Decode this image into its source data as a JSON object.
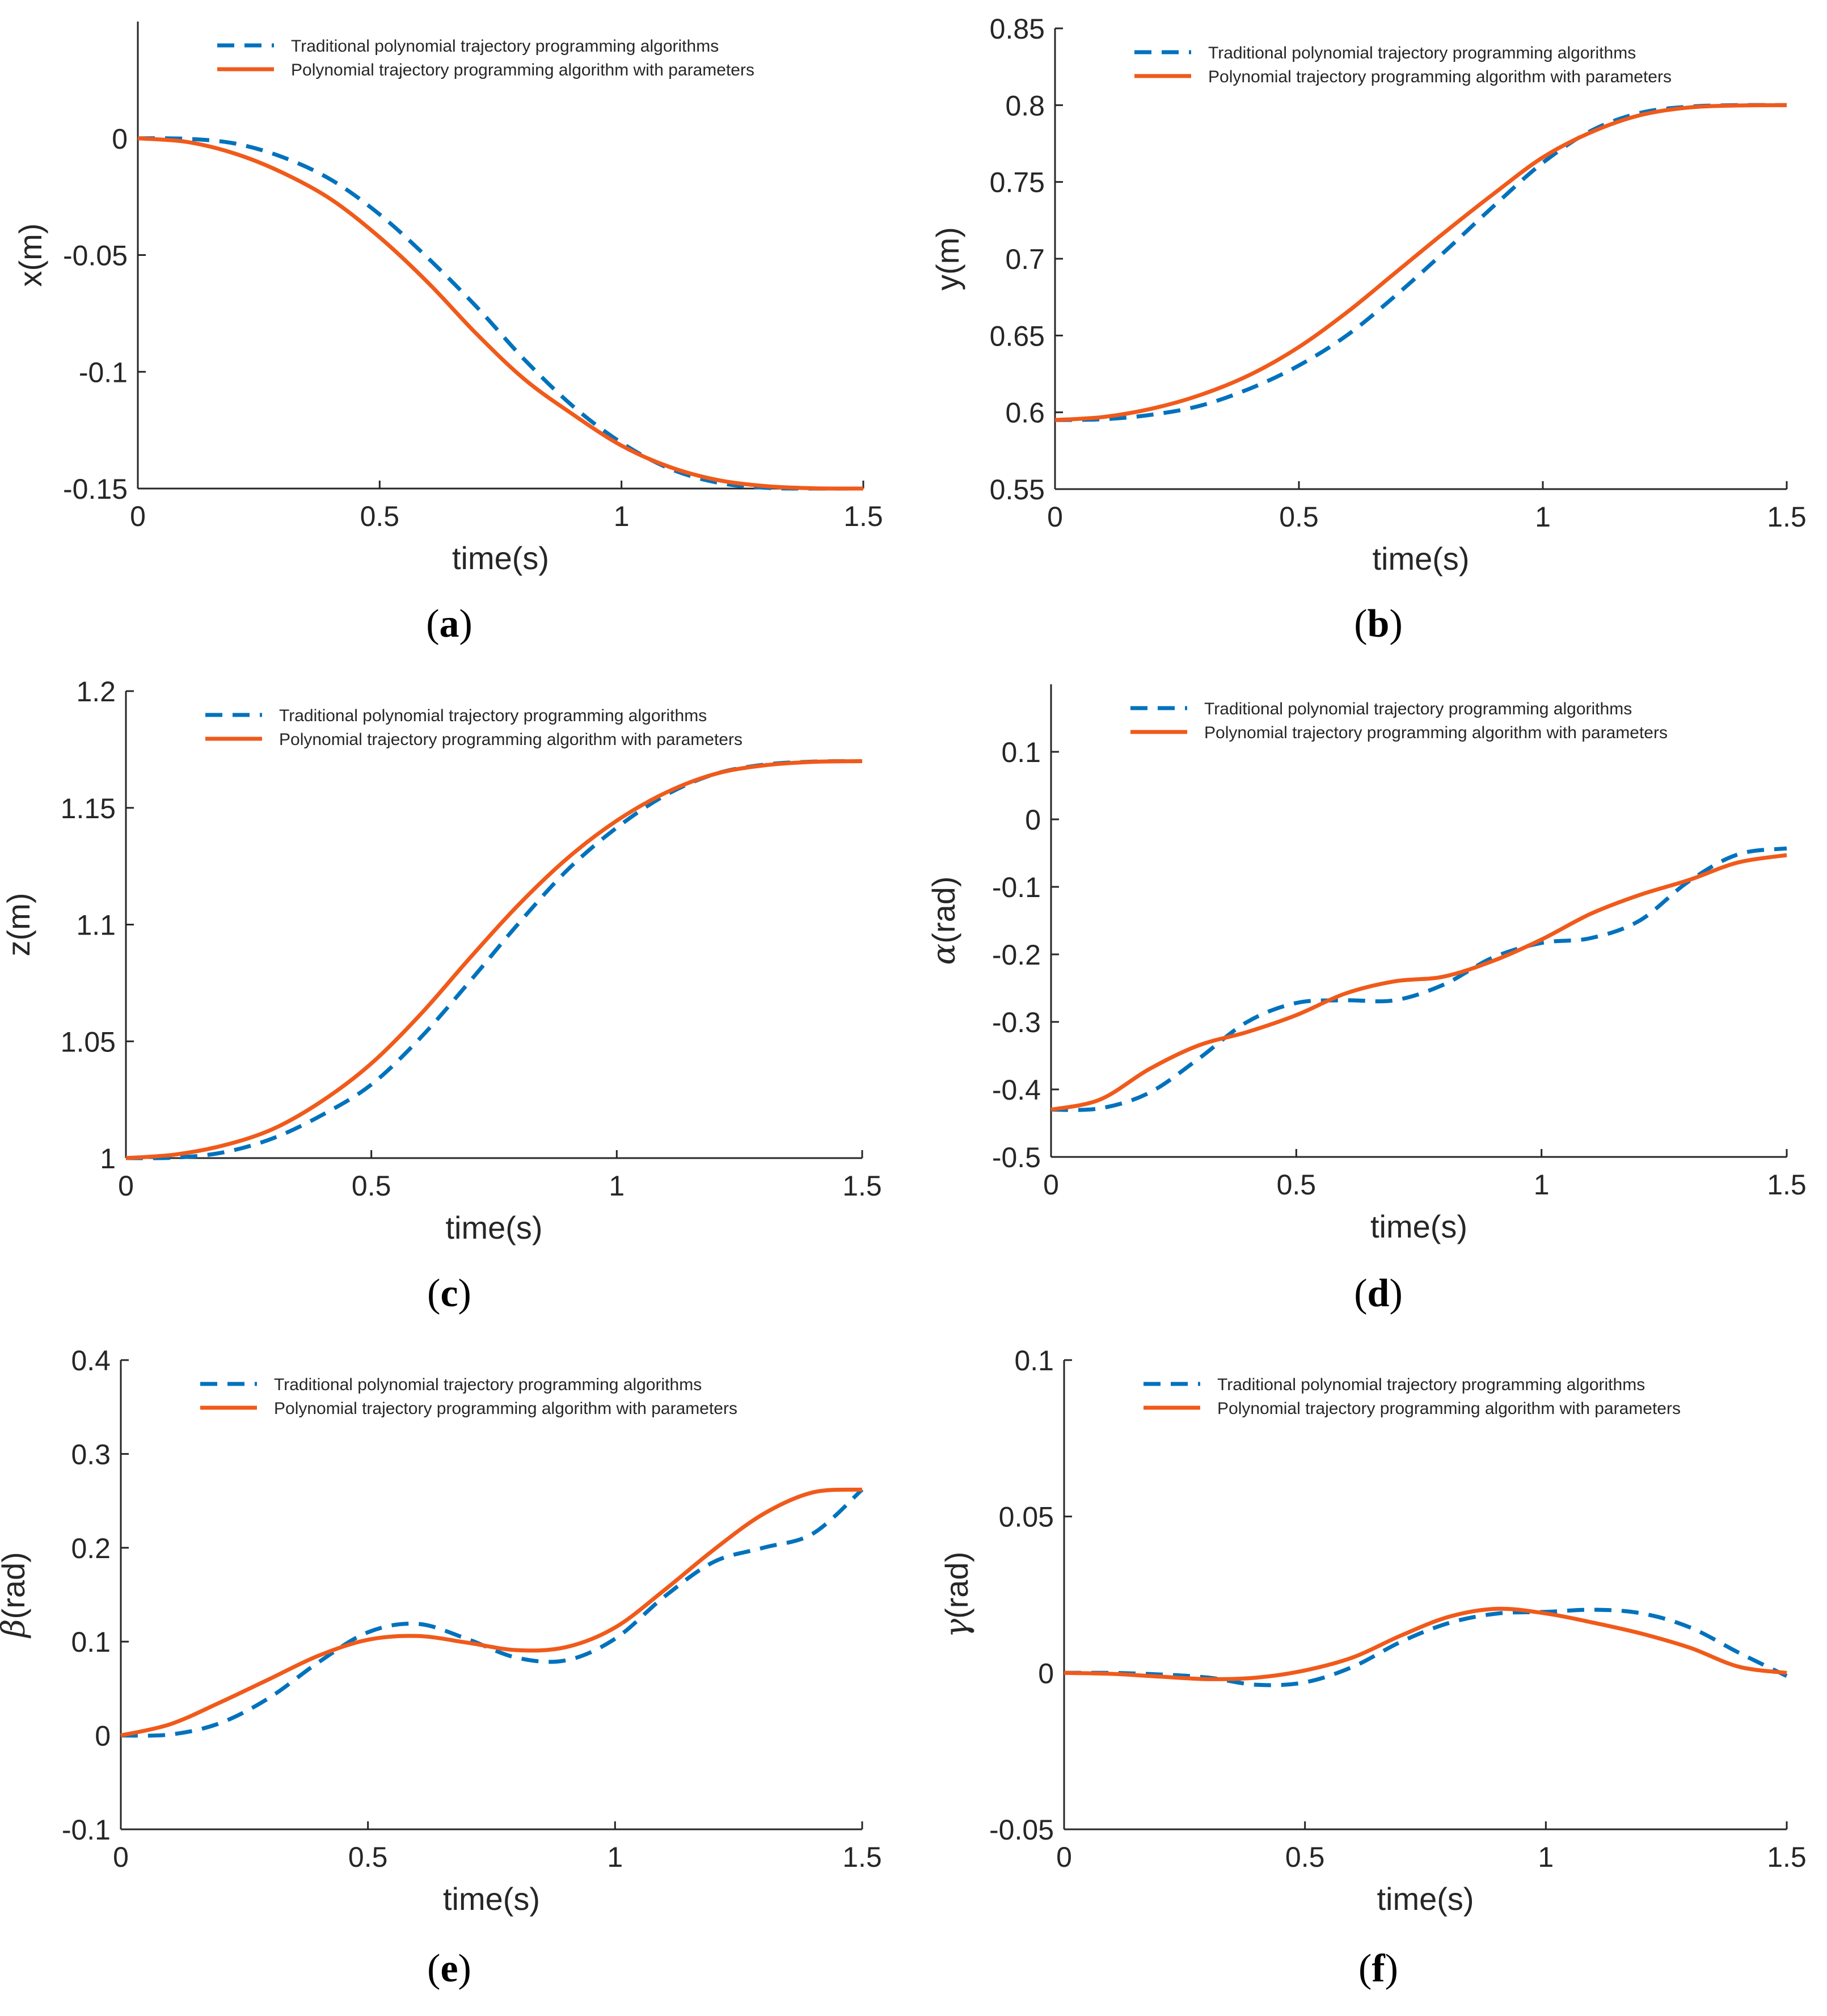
{
  "legend": {
    "traditional": "Traditional polynomial trajectory programming algorithms",
    "parametric": "Polynomial trajectory programming algorithm with parameters"
  },
  "colors": {
    "traditional": "#0072BD",
    "parametric": "#F05A1A",
    "axis": "#262626"
  },
  "chart_data": [
    {
      "id": "a",
      "type": "line",
      "caption": "a",
      "xlabel": "time(s)",
      "ylabel": "x(m)",
      "xlim": [
        0,
        1.5
      ],
      "ylim": [
        -0.15,
        0.05
      ],
      "xticks": [
        0,
        0.5,
        1,
        1.5
      ],
      "xtick_labels": [
        "0",
        "0.5",
        "1",
        "1.5"
      ],
      "yticks": [
        -0.15,
        -0.1,
        -0.05,
        0
      ],
      "ytick_labels": [
        "-0.15",
        "-0.1",
        "-0.05",
        "0"
      ],
      "x": [
        0,
        0.1,
        0.2,
        0.3,
        0.4,
        0.5,
        0.6,
        0.7,
        0.8,
        0.9,
        1.0,
        1.1,
        1.2,
        1.3,
        1.4,
        1.5
      ],
      "series": [
        {
          "name": "Traditional polynomial trajectory programming algorithms",
          "style": "dashed",
          "values": [
            0,
            -0.0002,
            -0.0022,
            -0.0081,
            -0.0178,
            -0.0326,
            -0.0513,
            -0.0721,
            -0.0949,
            -0.1148,
            -0.1304,
            -0.1415,
            -0.1475,
            -0.1497,
            -0.15,
            -0.15
          ]
        },
        {
          "name": "Polynomial trajectory programming algorithm with parameters",
          "style": "solid",
          "values": [
            0,
            -0.0015,
            -0.0065,
            -0.0148,
            -0.0262,
            -0.0424,
            -0.0618,
            -0.0837,
            -0.1033,
            -0.1183,
            -0.1316,
            -0.1408,
            -0.1464,
            -0.149,
            -0.1499,
            -0.15
          ]
        }
      ]
    },
    {
      "id": "b",
      "type": "line",
      "caption": "b",
      "xlabel": "time(s)",
      "ylabel": "y(m)",
      "xlim": [
        0,
        1.5
      ],
      "ylim": [
        0.55,
        0.85
      ],
      "xticks": [
        0,
        0.5,
        1,
        1.5
      ],
      "xtick_labels": [
        "0",
        "0.5",
        "1",
        "1.5"
      ],
      "yticks": [
        0.55,
        0.6,
        0.65,
        0.7,
        0.75,
        0.8,
        0.85
      ],
      "ytick_labels": [
        "0.55",
        "0.6",
        "0.65",
        "0.7",
        "0.75",
        "0.8",
        "0.85"
      ],
      "x": [
        0,
        0.1,
        0.2,
        0.3,
        0.4,
        0.5,
        0.6,
        0.7,
        0.8,
        0.9,
        1.0,
        1.1,
        1.2,
        1.3,
        1.4,
        1.5
      ],
      "series": [
        {
          "name": "Traditional polynomial trajectory programming algorithms",
          "style": "dashed",
          "values": [
            0.595,
            0.5955,
            0.5985,
            0.6045,
            0.6155,
            0.6305,
            0.6505,
            0.6765,
            0.705,
            0.7345,
            0.7625,
            0.7835,
            0.795,
            0.799,
            0.8,
            0.8
          ]
        },
        {
          "name": "Polynomial trajectory programming algorithm with parameters",
          "style": "solid",
          "values": [
            0.595,
            0.597,
            0.6025,
            0.6115,
            0.6245,
            0.6425,
            0.6655,
            0.6915,
            0.7175,
            0.7425,
            0.766,
            0.7825,
            0.7935,
            0.7985,
            0.7998,
            0.8
          ]
        }
      ]
    },
    {
      "id": "c",
      "type": "line",
      "caption": "c",
      "xlabel": "time(s)",
      "ylabel": "z(m)",
      "xlim": [
        0,
        1.5
      ],
      "ylim": [
        1.0,
        1.2
      ],
      "xticks": [
        0,
        0.5,
        1,
        1.5
      ],
      "xtick_labels": [
        "0",
        "0.5",
        "1",
        "1.5"
      ],
      "yticks": [
        1.0,
        1.05,
        1.1,
        1.15,
        1.2
      ],
      "ytick_labels": [
        "1",
        "1.05",
        "1.1",
        "1.15",
        "1.2"
      ],
      "x": [
        0,
        0.1,
        0.2,
        0.3,
        0.4,
        0.5,
        0.6,
        0.7,
        0.8,
        0.9,
        1.0,
        1.1,
        1.2,
        1.3,
        1.4,
        1.5
      ],
      "series": [
        {
          "name": "Traditional polynomial trajectory programming algorithms",
          "style": "dashed",
          "values": [
            1.0,
            1.0002,
            1.0025,
            1.0085,
            1.0185,
            1.0315,
            1.0515,
            1.0755,
            1.1005,
            1.1235,
            1.1415,
            1.1555,
            1.1645,
            1.1685,
            1.1698,
            1.17
          ]
        },
        {
          "name": "Polynomial trajectory programming algorithm with parameters",
          "style": "solid",
          "values": [
            1.0,
            1.0015,
            1.0055,
            1.0125,
            1.0245,
            1.0405,
            1.0615,
            1.0855,
            1.1085,
            1.1285,
            1.1445,
            1.1565,
            1.1645,
            1.1682,
            1.1697,
            1.17
          ]
        }
      ]
    },
    {
      "id": "d",
      "type": "line",
      "caption": "d",
      "xlabel": "time(s)",
      "ylabel": "α(rad)",
      "ylabel_symbol": "α",
      "ylabel_unit": "(rad)",
      "xlim": [
        0,
        1.5
      ],
      "ylim": [
        -0.5,
        0.2
      ],
      "xticks": [
        0,
        0.5,
        1,
        1.5
      ],
      "xtick_labels": [
        "0",
        "0.5",
        "1",
        "1.5"
      ],
      "yticks": [
        -0.5,
        -0.4,
        -0.3,
        -0.2,
        -0.1,
        0,
        0.1
      ],
      "ytick_labels": [
        "-0.5",
        "-0.4",
        "-0.3",
        "-0.2",
        "-0.1",
        "0",
        "0.1"
      ],
      "x": [
        0,
        0.1,
        0.2,
        0.3,
        0.4,
        0.5,
        0.6,
        0.7,
        0.8,
        0.9,
        1.0,
        1.1,
        1.2,
        1.3,
        1.4,
        1.5
      ],
      "series": [
        {
          "name": "Traditional polynomial trajectory programming algorithms",
          "style": "dashed",
          "values": [
            -0.43,
            -0.428,
            -0.405,
            -0.355,
            -0.3,
            -0.272,
            -0.268,
            -0.268,
            -0.245,
            -0.205,
            -0.183,
            -0.176,
            -0.15,
            -0.092,
            -0.052,
            -0.043
          ]
        },
        {
          "name": "Polynomial trajectory programming algorithm with parameters",
          "style": "solid",
          "values": [
            -0.43,
            -0.415,
            -0.37,
            -0.335,
            -0.315,
            -0.29,
            -0.258,
            -0.24,
            -0.233,
            -0.21,
            -0.178,
            -0.14,
            -0.112,
            -0.09,
            -0.064,
            -0.053
          ]
        }
      ]
    },
    {
      "id": "e",
      "type": "line",
      "caption": "e",
      "xlabel": "time(s)",
      "ylabel": "β(rad)",
      "ylabel_symbol": "β",
      "ylabel_unit": "(rad)",
      "xlim": [
        0,
        1.5
      ],
      "ylim": [
        -0.1,
        0.4
      ],
      "xticks": [
        0,
        0.5,
        1,
        1.5
      ],
      "xtick_labels": [
        "0",
        "0.5",
        "1",
        "1.5"
      ],
      "yticks": [
        -0.1,
        0,
        0.1,
        0.2,
        0.3,
        0.4
      ],
      "ytick_labels": [
        "-0.1",
        "0",
        "0.1",
        "0.2",
        "0.3",
        "0.4"
      ],
      "x": [
        0,
        0.1,
        0.2,
        0.3,
        0.4,
        0.5,
        0.6,
        0.7,
        0.8,
        0.9,
        1.0,
        1.1,
        1.2,
        1.3,
        1.4,
        1.5
      ],
      "series": [
        {
          "name": "Traditional polynomial trajectory programming algorithms",
          "style": "dashed",
          "values": [
            0,
            0.001,
            0.013,
            0.04,
            0.078,
            0.11,
            0.119,
            0.103,
            0.083,
            0.08,
            0.103,
            0.148,
            0.185,
            0.2,
            0.215,
            0.262
          ]
        },
        {
          "name": "Polynomial trajectory programming algorithm with parameters",
          "style": "solid",
          "values": [
            0,
            0.012,
            0.035,
            0.06,
            0.085,
            0.102,
            0.106,
            0.099,
            0.091,
            0.094,
            0.115,
            0.155,
            0.198,
            0.236,
            0.259,
            0.262
          ]
        }
      ]
    },
    {
      "id": "f",
      "type": "line",
      "caption": "f",
      "xlabel": "time(s)",
      "ylabel": "γ(rad)",
      "ylabel_symbol": "γ",
      "ylabel_unit": "(rad)",
      "xlim": [
        0,
        1.5
      ],
      "ylim": [
        -0.05,
        0.1
      ],
      "xticks": [
        0,
        0.5,
        1,
        1.5
      ],
      "xtick_labels": [
        "0",
        "0.5",
        "1",
        "1.5"
      ],
      "yticks": [
        -0.05,
        0,
        0.05,
        0.1
      ],
      "ytick_labels": [
        "-0.05",
        "0",
        "0.05",
        "0.1"
      ],
      "x": [
        0,
        0.1,
        0.2,
        0.3,
        0.4,
        0.5,
        0.6,
        0.7,
        0.8,
        0.9,
        1.0,
        1.1,
        1.2,
        1.3,
        1.4,
        1.5
      ],
      "series": [
        {
          "name": "Traditional polynomial trajectory programming algorithms",
          "style": "dashed",
          "values": [
            0,
            0,
            -0.0005,
            -0.0015,
            -0.0038,
            -0.003,
            0.002,
            0.01,
            0.016,
            0.019,
            0.0195,
            0.0202,
            0.019,
            0.0145,
            0.0065,
            -0.001
          ]
        },
        {
          "name": "Polynomial trajectory programming algorithm with parameters",
          "style": "solid",
          "values": [
            0,
            -0.0003,
            -0.0012,
            -0.002,
            -0.0015,
            0.0008,
            0.005,
            0.012,
            0.018,
            0.0205,
            0.019,
            0.016,
            0.0125,
            0.008,
            0.002,
            0
          ]
        }
      ]
    }
  ]
}
